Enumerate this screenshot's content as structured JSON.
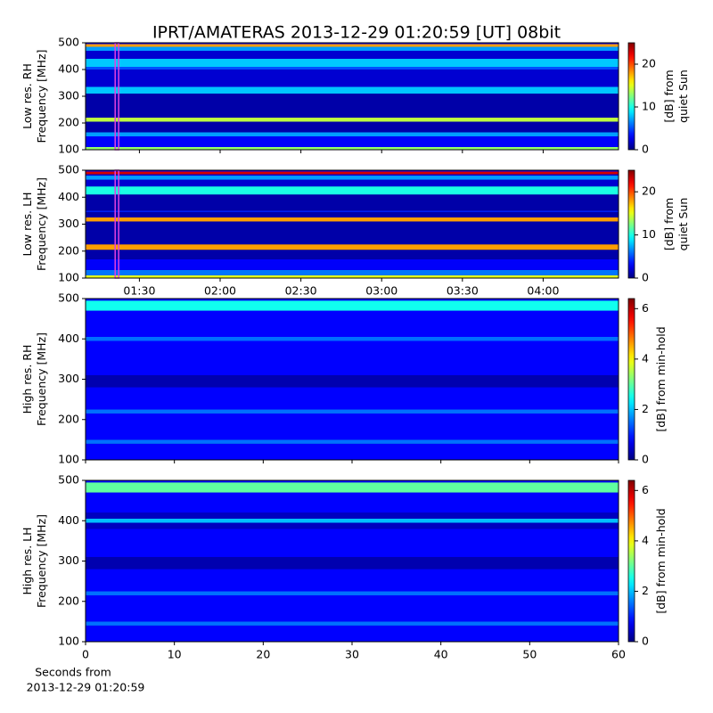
{
  "title": "IPRT/AMATERAS 2013-12-29 01:20:59 [UT]   08bit",
  "chart_data": [
    {
      "type": "heatmap",
      "colormap": "jet",
      "ylabel": [
        "Low res. RH",
        "Frequency [MHz]"
      ],
      "ylim": [
        100,
        500
      ],
      "yticks": [
        100,
        200,
        300,
        400,
        500
      ],
      "xlim": [
        70,
        268
      ],
      "xticks": [
        90,
        120,
        150,
        180,
        210,
        240
      ],
      "xticklabels": false,
      "ybins": [
        100,
        110,
        150,
        165,
        205,
        220,
        310,
        335,
        400,
        410,
        440,
        470,
        485,
        495,
        500
      ],
      "values": [
        13,
        3,
        7,
        1,
        14,
        1,
        8,
        2,
        5,
        8,
        2,
        7,
        18,
        3
      ],
      "marker": {
        "x": [
          81,
          82.3
        ],
        "color": "#e040e0"
      },
      "clim": [
        0,
        25
      ],
      "cticks": [
        0,
        10,
        20
      ],
      "clabel": [
        "[dB] from",
        "quiet Sun"
      ]
    },
    {
      "type": "heatmap",
      "colormap": "jet",
      "ylabel": [
        "Low res. LH",
        "Frequency [MHz]"
      ],
      "ylim": [
        100,
        500
      ],
      "yticks": [
        100,
        200,
        300,
        400,
        500
      ],
      "xlim": [
        70,
        268
      ],
      "xticks": [
        {
          "value": 90,
          "label": "01:30"
        },
        {
          "value": 120,
          "label": "02:00"
        },
        {
          "value": 150,
          "label": "02:30"
        },
        {
          "value": 180,
          "label": "03:00"
        },
        {
          "value": 210,
          "label": "03:30"
        },
        {
          "value": 240,
          "label": "04:00"
        }
      ],
      "xticklabels": true,
      "ybins": [
        100,
        110,
        130,
        170,
        205,
        225,
        310,
        325,
        345,
        350,
        410,
        440,
        465,
        480,
        485,
        495,
        500
      ],
      "values": [
        15,
        6,
        3,
        1,
        18,
        1,
        18,
        1,
        4,
        1,
        10,
        2,
        7,
        2,
        23,
        3
      ],
      "marker": {
        "x": [
          81,
          82.3
        ],
        "color": "#e040e0"
      },
      "clim": [
        0,
        25
      ],
      "cticks": [
        0,
        10,
        20
      ],
      "clabel": [
        "[dB] from",
        "quiet Sun"
      ]
    },
    {
      "type": "heatmap",
      "colormap": "jet",
      "ylabel": [
        "High res. RH",
        "Frequency [MHz]"
      ],
      "ylim": [
        100,
        500
      ],
      "yticks": [
        100,
        200,
        300,
        400,
        500
      ],
      "xlim": [
        0,
        60
      ],
      "xticks": [
        0,
        10,
        20,
        30,
        40,
        50,
        60
      ],
      "xticklabels": false,
      "ybins": [
        100,
        140,
        150,
        215,
        225,
        280,
        310,
        395,
        405,
        470,
        495,
        500
      ],
      "values": [
        0.8,
        1.5,
        0.8,
        1.5,
        0.8,
        0.3,
        0.8,
        1.5,
        0.8,
        2.5,
        0.8
      ],
      "clim": [
        0,
        6.4
      ],
      "cticks": [
        0,
        2,
        4,
        6
      ],
      "clabel": [
        "[dB] from min-hold"
      ]
    },
    {
      "type": "heatmap",
      "colormap": "jet",
      "ylabel": [
        "High res. LH",
        "Frequency [MHz]"
      ],
      "ylim": [
        100,
        500
      ],
      "yticks": [
        100,
        200,
        300,
        400,
        500
      ],
      "xlim": [
        0,
        60
      ],
      "xticks": [
        0,
        10,
        20,
        30,
        40,
        50,
        60
      ],
      "xticklabels": true,
      "xlabel": [
        "Seconds from",
        "2013-12-29 01:20:59"
      ],
      "ybins": [
        100,
        140,
        150,
        215,
        225,
        280,
        310,
        380,
        395,
        405,
        420,
        470,
        495,
        500
      ],
      "values": [
        0.8,
        1.5,
        0.8,
        1.5,
        0.8,
        0.3,
        0.8,
        0.4,
        2,
        0.4,
        0.8,
        3,
        0.8
      ],
      "clim": [
        0,
        6.4
      ],
      "cticks": [
        0,
        2,
        4,
        6
      ],
      "clabel": [
        "[dB] from min-hold"
      ]
    }
  ]
}
